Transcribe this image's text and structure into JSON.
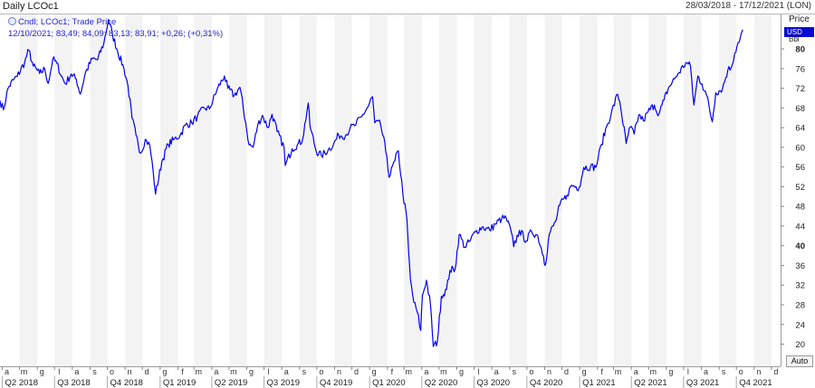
{
  "header": {
    "title": "Daily LCOc1",
    "date_range": "28/03/2018 - 17/12/2021 (LON)"
  },
  "legend": {
    "line1": "Cndl; LCOc1; Trade Price",
    "line2": "12/10/2021; 83,49; 84,09; 83,13; 83,91; +0,26; (+0,31%)"
  },
  "axis": {
    "price_label": "Price",
    "currency": "USD",
    "unit": "Bbl",
    "auto_label": "Auto"
  },
  "colors": {
    "line": "#0000ee",
    "band": "#f3f3f3",
    "currency_box": "#0a0ad2"
  },
  "chart_data": {
    "type": "line",
    "y_ticks": [
      20,
      24,
      28,
      32,
      36,
      40,
      44,
      48,
      52,
      56,
      60,
      64,
      68,
      72,
      76,
      80
    ],
    "ylim": [
      15.5,
      87
    ],
    "x_start": "2018-03-28",
    "x_end": "2021-12-17",
    "month_labels": [
      {
        "date": "2018-04-01",
        "label": "a"
      },
      {
        "date": "2018-05-01",
        "label": "m"
      },
      {
        "date": "2018-06-01",
        "label": "g"
      },
      {
        "date": "2018-07-01",
        "label": "l"
      },
      {
        "date": "2018-08-01",
        "label": "a"
      },
      {
        "date": "2018-09-01",
        "label": "s"
      },
      {
        "date": "2018-10-01",
        "label": "o"
      },
      {
        "date": "2018-11-01",
        "label": "n"
      },
      {
        "date": "2018-12-01",
        "label": "d"
      },
      {
        "date": "2019-01-01",
        "label": "g"
      },
      {
        "date": "2019-02-01",
        "label": "f"
      },
      {
        "date": "2019-03-01",
        "label": "m"
      },
      {
        "date": "2019-04-01",
        "label": "a"
      },
      {
        "date": "2019-05-01",
        "label": "m"
      },
      {
        "date": "2019-06-01",
        "label": "g"
      },
      {
        "date": "2019-07-01",
        "label": "l"
      },
      {
        "date": "2019-08-01",
        "label": "a"
      },
      {
        "date": "2019-09-01",
        "label": "s"
      },
      {
        "date": "2019-10-01",
        "label": "o"
      },
      {
        "date": "2019-11-01",
        "label": "n"
      },
      {
        "date": "2019-12-01",
        "label": "d"
      },
      {
        "date": "2020-01-01",
        "label": "g"
      },
      {
        "date": "2020-02-01",
        "label": "f"
      },
      {
        "date": "2020-03-01",
        "label": "m"
      },
      {
        "date": "2020-04-01",
        "label": "a"
      },
      {
        "date": "2020-05-01",
        "label": "m"
      },
      {
        "date": "2020-06-01",
        "label": "g"
      },
      {
        "date": "2020-07-01",
        "label": "l"
      },
      {
        "date": "2020-08-01",
        "label": "a"
      },
      {
        "date": "2020-09-01",
        "label": "s"
      },
      {
        "date": "2020-10-01",
        "label": "o"
      },
      {
        "date": "2020-11-01",
        "label": "n"
      },
      {
        "date": "2020-12-01",
        "label": "d"
      },
      {
        "date": "2021-01-01",
        "label": "g"
      },
      {
        "date": "2021-02-01",
        "label": "f"
      },
      {
        "date": "2021-03-01",
        "label": "m"
      },
      {
        "date": "2021-04-01",
        "label": "a"
      },
      {
        "date": "2021-05-01",
        "label": "m"
      },
      {
        "date": "2021-06-01",
        "label": "g"
      },
      {
        "date": "2021-07-01",
        "label": "l"
      },
      {
        "date": "2021-08-01",
        "label": "a"
      },
      {
        "date": "2021-09-01",
        "label": "s"
      },
      {
        "date": "2021-10-01",
        "label": "o"
      },
      {
        "date": "2021-11-01",
        "label": "n"
      },
      {
        "date": "2021-12-01",
        "label": "d"
      }
    ],
    "quarter_labels": [
      {
        "date": "2018-04-01",
        "label": "Q2 2018"
      },
      {
        "date": "2018-07-01",
        "label": "Q3 2018"
      },
      {
        "date": "2018-10-01",
        "label": "Q4 2018"
      },
      {
        "date": "2019-01-01",
        "label": "Q1 2019"
      },
      {
        "date": "2019-04-01",
        "label": "Q2 2019"
      },
      {
        "date": "2019-07-01",
        "label": "Q3 2019"
      },
      {
        "date": "2019-10-01",
        "label": "Q4 2019"
      },
      {
        "date": "2020-01-01",
        "label": "Q1 2020"
      },
      {
        "date": "2020-04-01",
        "label": "Q2 2020"
      },
      {
        "date": "2020-07-01",
        "label": "Q3 2020"
      },
      {
        "date": "2020-10-01",
        "label": "Q4 2020"
      },
      {
        "date": "2021-01-01",
        "label": "Q1 2021"
      },
      {
        "date": "2021-04-01",
        "label": "Q2 2021"
      },
      {
        "date": "2021-07-01",
        "label": "Q3 2021"
      },
      {
        "date": "2021-10-01",
        "label": "Q4 2021"
      }
    ],
    "series": [
      {
        "points": [
          [
            "2018-03-28",
            69.5
          ],
          [
            "2018-04-03",
            67.6
          ],
          [
            "2018-04-11",
            72.0
          ],
          [
            "2018-04-20",
            73.7
          ],
          [
            "2018-04-27",
            74.4
          ],
          [
            "2018-05-10",
            77.3
          ],
          [
            "2018-05-17",
            79.8
          ],
          [
            "2018-05-25",
            76.5
          ],
          [
            "2018-06-05",
            75.0
          ],
          [
            "2018-06-14",
            75.9
          ],
          [
            "2018-06-20",
            73.0
          ],
          [
            "2018-06-28",
            77.9
          ],
          [
            "2018-07-05",
            77.1
          ],
          [
            "2018-07-13",
            74.5
          ],
          [
            "2018-07-20",
            72.9
          ],
          [
            "2018-07-30",
            74.9
          ],
          [
            "2018-08-08",
            73.8
          ],
          [
            "2018-08-15",
            70.8
          ],
          [
            "2018-08-24",
            75.2
          ],
          [
            "2018-09-05",
            78.0
          ],
          [
            "2018-09-14",
            77.8
          ],
          [
            "2018-09-25",
            81.2
          ],
          [
            "2018-10-03",
            86.0
          ],
          [
            "2018-10-10",
            82.9
          ],
          [
            "2018-10-19",
            79.5
          ],
          [
            "2018-10-30",
            76.0
          ],
          [
            "2018-11-06",
            72.5
          ],
          [
            "2018-11-13",
            65.9
          ],
          [
            "2018-11-20",
            62.5
          ],
          [
            "2018-11-28",
            58.8
          ],
          [
            "2018-12-06",
            61.6
          ],
          [
            "2018-12-14",
            60.4
          ],
          [
            "2018-12-20",
            55.0
          ],
          [
            "2018-12-24",
            50.5
          ],
          [
            "2019-01-04",
            57.1
          ],
          [
            "2019-01-15",
            60.6
          ],
          [
            "2019-01-24",
            61.5
          ],
          [
            "2019-02-05",
            62.5
          ],
          [
            "2019-02-14",
            64.5
          ],
          [
            "2019-02-25",
            65.0
          ],
          [
            "2019-03-07",
            66.3
          ],
          [
            "2019-03-19",
            68.0
          ],
          [
            "2019-03-28",
            67.8
          ],
          [
            "2019-04-10",
            71.7
          ],
          [
            "2019-04-23",
            74.5
          ],
          [
            "2019-04-29",
            72.0
          ],
          [
            "2019-05-10",
            70.5
          ],
          [
            "2019-05-20",
            72.2
          ],
          [
            "2019-05-30",
            65.0
          ],
          [
            "2019-06-05",
            60.5
          ],
          [
            "2019-06-12",
            60.0
          ],
          [
            "2019-06-20",
            64.5
          ],
          [
            "2019-06-28",
            66.5
          ],
          [
            "2019-07-08",
            64.0
          ],
          [
            "2019-07-15",
            66.7
          ],
          [
            "2019-07-24",
            63.2
          ],
          [
            "2019-08-05",
            60.0
          ],
          [
            "2019-08-07",
            56.3
          ],
          [
            "2019-08-19",
            59.7
          ],
          [
            "2019-08-28",
            60.5
          ],
          [
            "2019-09-06",
            61.5
          ],
          [
            "2019-09-16",
            69.0
          ],
          [
            "2019-09-19",
            64.4
          ],
          [
            "2019-09-30",
            59.2
          ],
          [
            "2019-10-09",
            58.3
          ],
          [
            "2019-10-21",
            59.5
          ],
          [
            "2019-10-30",
            60.6
          ],
          [
            "2019-11-08",
            62.5
          ],
          [
            "2019-11-20",
            62.4
          ],
          [
            "2019-11-28",
            63.9
          ],
          [
            "2019-12-06",
            64.4
          ],
          [
            "2019-12-18",
            66.2
          ],
          [
            "2019-12-30",
            68.4
          ],
          [
            "2020-01-06",
            70.3
          ],
          [
            "2020-01-10",
            65.0
          ],
          [
            "2020-01-20",
            64.7
          ],
          [
            "2020-01-31",
            58.2
          ],
          [
            "2020-02-04",
            53.9
          ],
          [
            "2020-02-14",
            57.3
          ],
          [
            "2020-02-20",
            59.3
          ],
          [
            "2020-02-28",
            50.5
          ],
          [
            "2020-03-06",
            45.3
          ],
          [
            "2020-03-09",
            38.7
          ],
          [
            "2020-03-12",
            33.2
          ],
          [
            "2020-03-18",
            28.5
          ],
          [
            "2020-03-24",
            26.5
          ],
          [
            "2020-03-30",
            22.8
          ],
          [
            "2020-04-02",
            29.9
          ],
          [
            "2020-04-09",
            33.0
          ],
          [
            "2020-04-16",
            28.0
          ],
          [
            "2020-04-21",
            19.5
          ],
          [
            "2020-04-28",
            20.5
          ],
          [
            "2020-05-05",
            29.7
          ],
          [
            "2020-05-14",
            31.1
          ],
          [
            "2020-05-20",
            35.0
          ],
          [
            "2020-05-29",
            35.3
          ],
          [
            "2020-06-05",
            42.3
          ],
          [
            "2020-06-15",
            39.7
          ],
          [
            "2020-06-24",
            41.0
          ],
          [
            "2020-07-03",
            42.8
          ],
          [
            "2020-07-15",
            43.8
          ],
          [
            "2020-07-28",
            43.2
          ],
          [
            "2020-08-07",
            44.4
          ],
          [
            "2020-08-18",
            45.5
          ],
          [
            "2020-08-26",
            45.6
          ],
          [
            "2020-09-04",
            42.7
          ],
          [
            "2020-09-08",
            39.8
          ],
          [
            "2020-09-18",
            43.1
          ],
          [
            "2020-09-30",
            41.0
          ],
          [
            "2020-10-09",
            42.9
          ],
          [
            "2020-10-20",
            42.0
          ],
          [
            "2020-10-30",
            37.9
          ],
          [
            "2020-11-02",
            36.0
          ],
          [
            "2020-11-09",
            42.4
          ],
          [
            "2020-11-20",
            44.9
          ],
          [
            "2020-11-27",
            48.2
          ],
          [
            "2020-12-10",
            50.3
          ],
          [
            "2020-12-18",
            52.3
          ],
          [
            "2020-12-31",
            51.8
          ],
          [
            "2021-01-08",
            55.9
          ],
          [
            "2021-01-20",
            56.1
          ],
          [
            "2021-01-29",
            55.9
          ],
          [
            "2021-02-08",
            60.6
          ],
          [
            "2021-02-17",
            64.3
          ],
          [
            "2021-02-25",
            66.9
          ],
          [
            "2021-03-08",
            70.8
          ],
          [
            "2021-03-12",
            69.2
          ],
          [
            "2021-03-23",
            60.8
          ],
          [
            "2021-03-30",
            64.1
          ],
          [
            "2021-04-06",
            62.7
          ],
          [
            "2021-04-14",
            66.6
          ],
          [
            "2021-04-22",
            65.4
          ],
          [
            "2021-04-30",
            67.2
          ],
          [
            "2021-05-11",
            68.6
          ],
          [
            "2021-05-19",
            66.7
          ],
          [
            "2021-05-28",
            69.6
          ],
          [
            "2021-06-04",
            71.9
          ],
          [
            "2021-06-15",
            73.9
          ],
          [
            "2021-06-23",
            75.2
          ],
          [
            "2021-07-05",
            77.2
          ],
          [
            "2021-07-13",
            76.5
          ],
          [
            "2021-07-19",
            68.6
          ],
          [
            "2021-07-26",
            74.5
          ],
          [
            "2021-08-02",
            72.9
          ],
          [
            "2021-08-10",
            70.6
          ],
          [
            "2021-08-20",
            65.2
          ],
          [
            "2021-08-26",
            71.1
          ],
          [
            "2021-09-07",
            72.0
          ],
          [
            "2021-09-16",
            75.7
          ],
          [
            "2021-09-22",
            76.2
          ],
          [
            "2021-09-28",
            79.1
          ],
          [
            "2021-10-04",
            81.3
          ],
          [
            "2021-10-08",
            82.4
          ],
          [
            "2021-10-12",
            83.9
          ]
        ]
      }
    ]
  }
}
